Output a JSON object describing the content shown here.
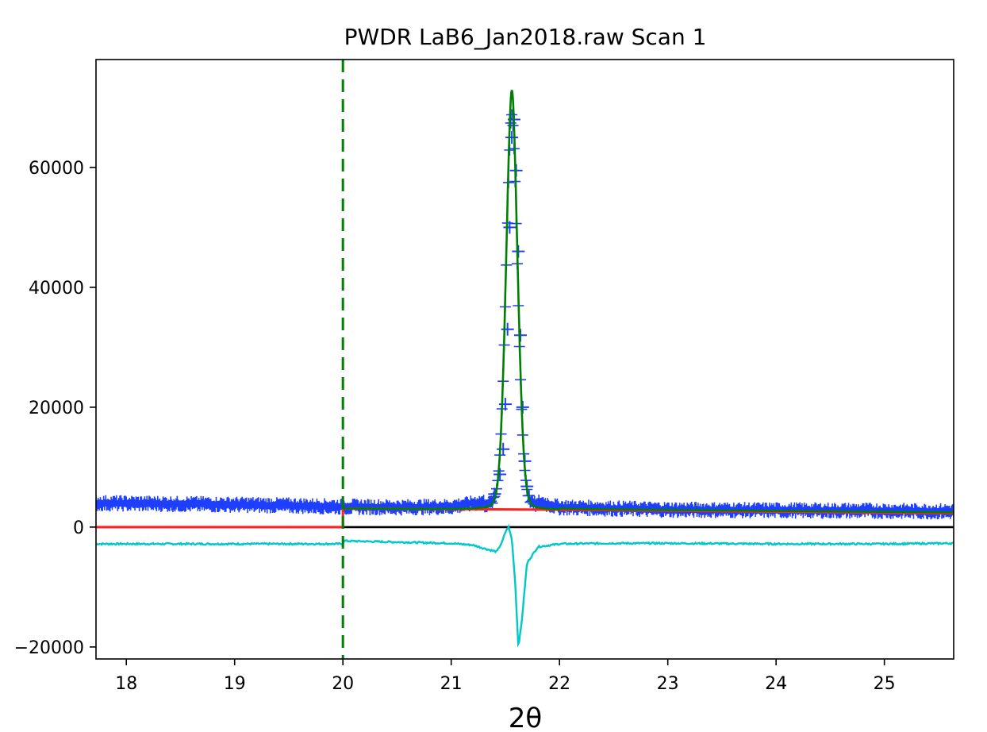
{
  "chart_data": {
    "type": "line",
    "title": "PWDR LaB6_Jan2018.raw Scan 1",
    "xlabel": "2θ",
    "ylabel": "",
    "xlim": [
      17.72,
      25.64
    ],
    "ylim": [
      -22000,
      78000
    ],
    "x_ticks": [
      18,
      19,
      20,
      21,
      22,
      23,
      24,
      25
    ],
    "y_ticks": [
      -20000,
      0,
      20000,
      40000,
      60000
    ],
    "grid": false,
    "legend": "none",
    "peak": {
      "center": 21.56,
      "sigma": 0.055,
      "gamma": 0.045,
      "height": 70000
    },
    "limit_line": {
      "x": 20.0,
      "color": "#008000",
      "style": "dashed"
    },
    "zero_line": {
      "y": 0,
      "color": "#000000"
    },
    "series": [
      {
        "kind": "observed",
        "color": "#1f3fff",
        "marker": "+",
        "x": [
          17.72,
          18.0,
          18.5,
          19.0,
          19.5,
          20.0,
          20.5,
          21.0,
          21.3,
          21.4,
          21.45,
          21.48,
          21.5,
          21.52,
          21.54,
          21.56,
          21.58,
          21.6,
          21.62,
          21.64,
          21.66,
          21.68,
          21.7,
          21.8,
          22.0,
          22.5,
          23.0,
          24.0,
          25.0,
          25.64
        ],
        "y": [
          4000,
          3950,
          3850,
          3750,
          3600,
          3400,
          3300,
          3400,
          4200,
          5500,
          8800,
          13000,
          20500,
          33000,
          50000,
          65000,
          68000,
          59500,
          46000,
          32000,
          20000,
          11000,
          6800,
          4200,
          3300,
          3100,
          2900,
          2800,
          2700,
          2600
        ]
      },
      {
        "kind": "calculated",
        "color": "#008000",
        "x": [
          20.0,
          20.5,
          21.0,
          21.3,
          21.4,
          21.45,
          21.48,
          21.5,
          21.52,
          21.54,
          21.56,
          21.58,
          21.6,
          21.62,
          21.64,
          21.66,
          21.68,
          21.7,
          21.8,
          22.0,
          22.5,
          23.0,
          24.0,
          25.0,
          25.64
        ],
        "y": [
          3100,
          3100,
          3300,
          4000,
          5300,
          8500,
          12500,
          20000,
          35000,
          55000,
          72500,
          66000,
          50000,
          33000,
          20000,
          11500,
          7200,
          5200,
          3600,
          3000,
          2800,
          2700,
          2600,
          2500,
          2450
        ]
      },
      {
        "kind": "background",
        "color": "#ff2020",
        "x": [
          17.72,
          20.0,
          20.0,
          22.0,
          25.64
        ],
        "y": [
          0,
          0,
          3100,
          2900,
          2300
        ]
      },
      {
        "kind": "difference",
        "color": "#00c8c8",
        "x": [
          17.72,
          20.0,
          20.01,
          20.5,
          21.0,
          21.2,
          21.35,
          21.42,
          21.47,
          21.5,
          21.53,
          21.56,
          21.59,
          21.62,
          21.65,
          21.7,
          21.8,
          22.0,
          22.5,
          23.0,
          24.0,
          25.0,
          25.64
        ],
        "y": [
          -2800,
          -2800,
          -2300,
          -2500,
          -2700,
          -3000,
          -3800,
          -4100,
          -2500,
          -800,
          0,
          -2000,
          -9000,
          -20000,
          -16000,
          -6000,
          -3300,
          -2800,
          -2700,
          -2700,
          -2800,
          -2800,
          -2700
        ]
      }
    ]
  }
}
